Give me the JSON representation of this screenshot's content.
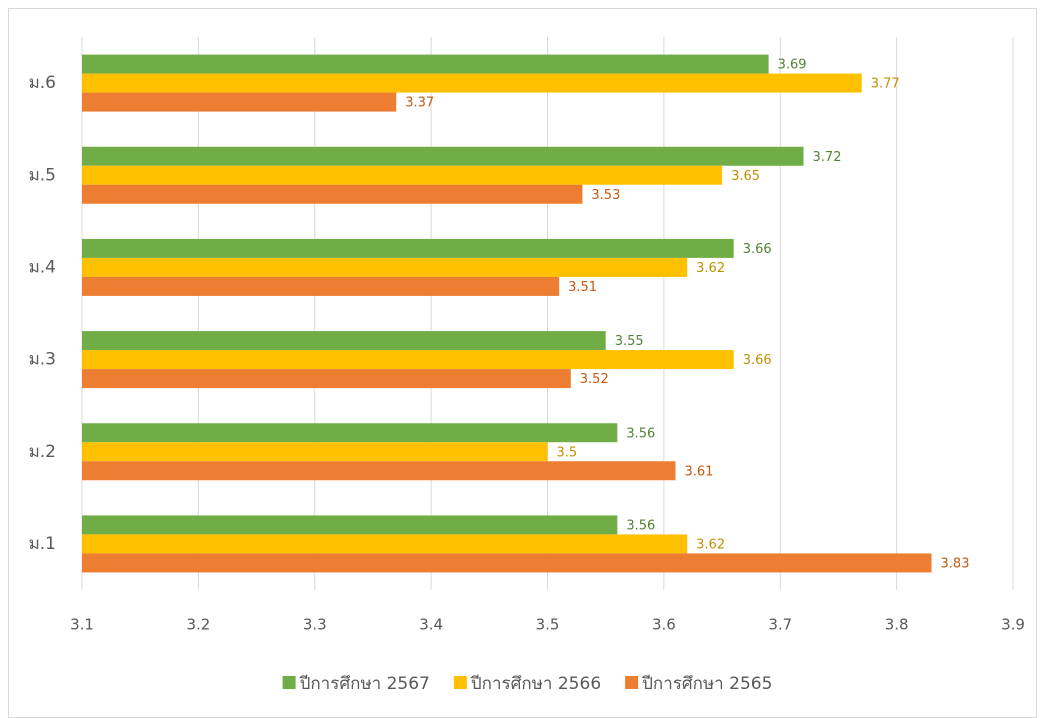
{
  "chart_data": {
    "type": "hbar",
    "categories": [
      "ม.1",
      "ม.2",
      "ม.3",
      "ม.4",
      "ม.5",
      "ม.6"
    ],
    "series": [
      {
        "name": "ปีการศึกษา 2567",
        "color": "#70ad47",
        "label_color": "#548235",
        "values": [
          3.56,
          3.56,
          3.55,
          3.66,
          3.72,
          3.69
        ]
      },
      {
        "name": "ปีการศึกษา 2566",
        "color": "#ffc000",
        "label_color": "#bf9000",
        "values": [
          3.62,
          3.5,
          3.66,
          3.62,
          3.65,
          3.77
        ]
      },
      {
        "name": "ปีการศึกษา 2565",
        "color": "#ed7d31",
        "label_color": "#c55a11",
        "values": [
          3.83,
          3.61,
          3.52,
          3.51,
          3.53,
          3.37
        ]
      }
    ],
    "xlim": [
      3.1,
      3.9
    ],
    "xticks": [
      3.1,
      3.2,
      3.3,
      3.4,
      3.5,
      3.6,
      3.7,
      3.8,
      3.9
    ],
    "grid": true,
    "legend": "bottom"
  }
}
